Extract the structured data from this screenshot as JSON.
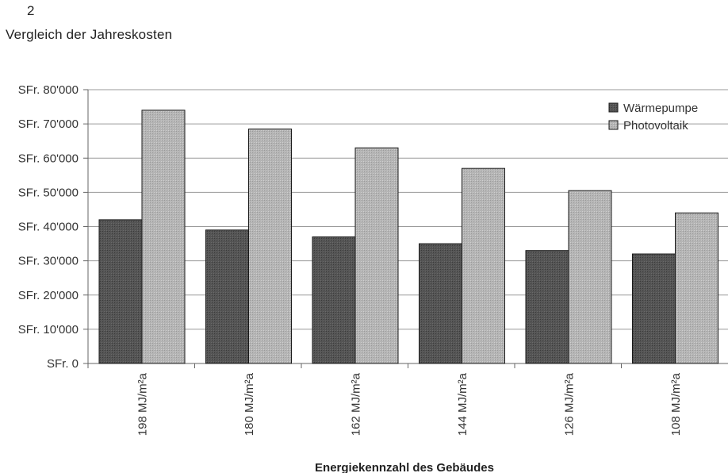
{
  "figure_number": "2",
  "chart_data": {
    "type": "bar",
    "title": "Vergleich der Jahreskosten",
    "xlabel": "Energiekennzahl des Gebäudes",
    "ylabel": "",
    "categories": [
      "198 MJ/m²a",
      "180 MJ/m²a",
      "162 MJ/m²a",
      "144 MJ/m²a",
      "126 MJ/m²a",
      "108 MJ/m²a"
    ],
    "series": [
      {
        "name": "Wärmepumpe",
        "color": "#555555",
        "values": [
          42000,
          39000,
          37000,
          35000,
          33000,
          32000
        ]
      },
      {
        "name": "Photovoltaik",
        "color": "#b5b5b5",
        "values": [
          74000,
          68500,
          63000,
          57000,
          50500,
          44000
        ]
      }
    ],
    "ylim": [
      0,
      80000
    ],
    "yticks": [
      0,
      10000,
      20000,
      30000,
      40000,
      50000,
      60000,
      70000,
      80000
    ],
    "ytick_labels": [
      "SFr. 0",
      "SFr. 10'000",
      "SFr. 20'000",
      "SFr. 30'000",
      "SFr. 40'000",
      "SFr. 50'000",
      "SFr. 60'000",
      "SFr. 70'000",
      "SFr. 80'000"
    ],
    "grid": true,
    "legend_position": "top-right"
  }
}
